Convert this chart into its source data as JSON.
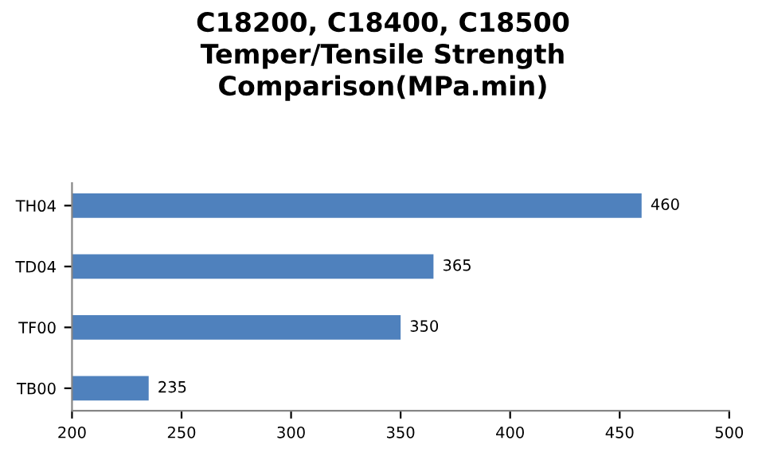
{
  "chart_data": {
    "type": "bar",
    "orientation": "horizontal",
    "title": "C18200, C18400, C18500\nTemper/Tensile Strength\nComparison(MPa.min)",
    "categories": [
      "TH04",
      "TD04",
      "TF00",
      "TB00"
    ],
    "values": [
      460,
      365,
      350,
      235
    ],
    "color": "#4f81bd",
    "xlim": [
      200,
      500
    ],
    "xticks": [
      200,
      250,
      300,
      350,
      400,
      450,
      500
    ],
    "grid": false,
    "data_labels": true
  }
}
